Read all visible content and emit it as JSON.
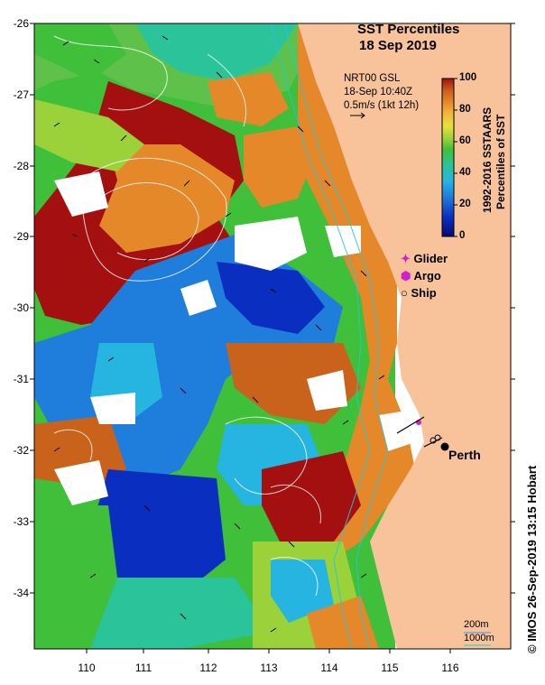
{
  "title": {
    "line1": "SST Percentiles",
    "line2": "18 Sep 2019"
  },
  "current_info": {
    "source": "NRT00 GSL",
    "timestamp": "18-Sep 10:40Z",
    "scale_text": "0.5m/s (1kt 12h)"
  },
  "colorbar": {
    "ticks": [
      "100",
      "80",
      "60",
      "40",
      "20",
      "0"
    ],
    "title_line1": "1992-2016 SSTAARS",
    "title_line2": "Percentiles of SST",
    "colors": [
      "#08087a",
      "#0a2ec0",
      "#1f7ddc",
      "#25b5e0",
      "#2bc39a",
      "#3fbf3a",
      "#9bd23a",
      "#e8e03a",
      "#f3b53a",
      "#e5882a",
      "#c9631c",
      "#a41010"
    ]
  },
  "axes": {
    "y_ticks": [
      "-26",
      "-27",
      "-28",
      "-29",
      "-30",
      "-31",
      "-32",
      "-33",
      "-34"
    ],
    "x_ticks": [
      "110",
      "111",
      "112",
      "113",
      "114",
      "115",
      "116"
    ]
  },
  "legend": {
    "items": [
      {
        "label": "Glider",
        "symbol": "✦",
        "color": "#d020d0"
      },
      {
        "label": "Argo",
        "symbol": "⬢",
        "color": "#d020d0"
      },
      {
        "label": "Ship",
        "symbol": "○",
        "color": "#000000"
      }
    ]
  },
  "place_label": "Perth",
  "bathymetry_scale": {
    "contour_200m": "200m",
    "contour_1000m": "1000m"
  },
  "credit": "© IMOS 26-Sep-2019 13:15 Hobart",
  "land_color": "#f8c39a"
}
